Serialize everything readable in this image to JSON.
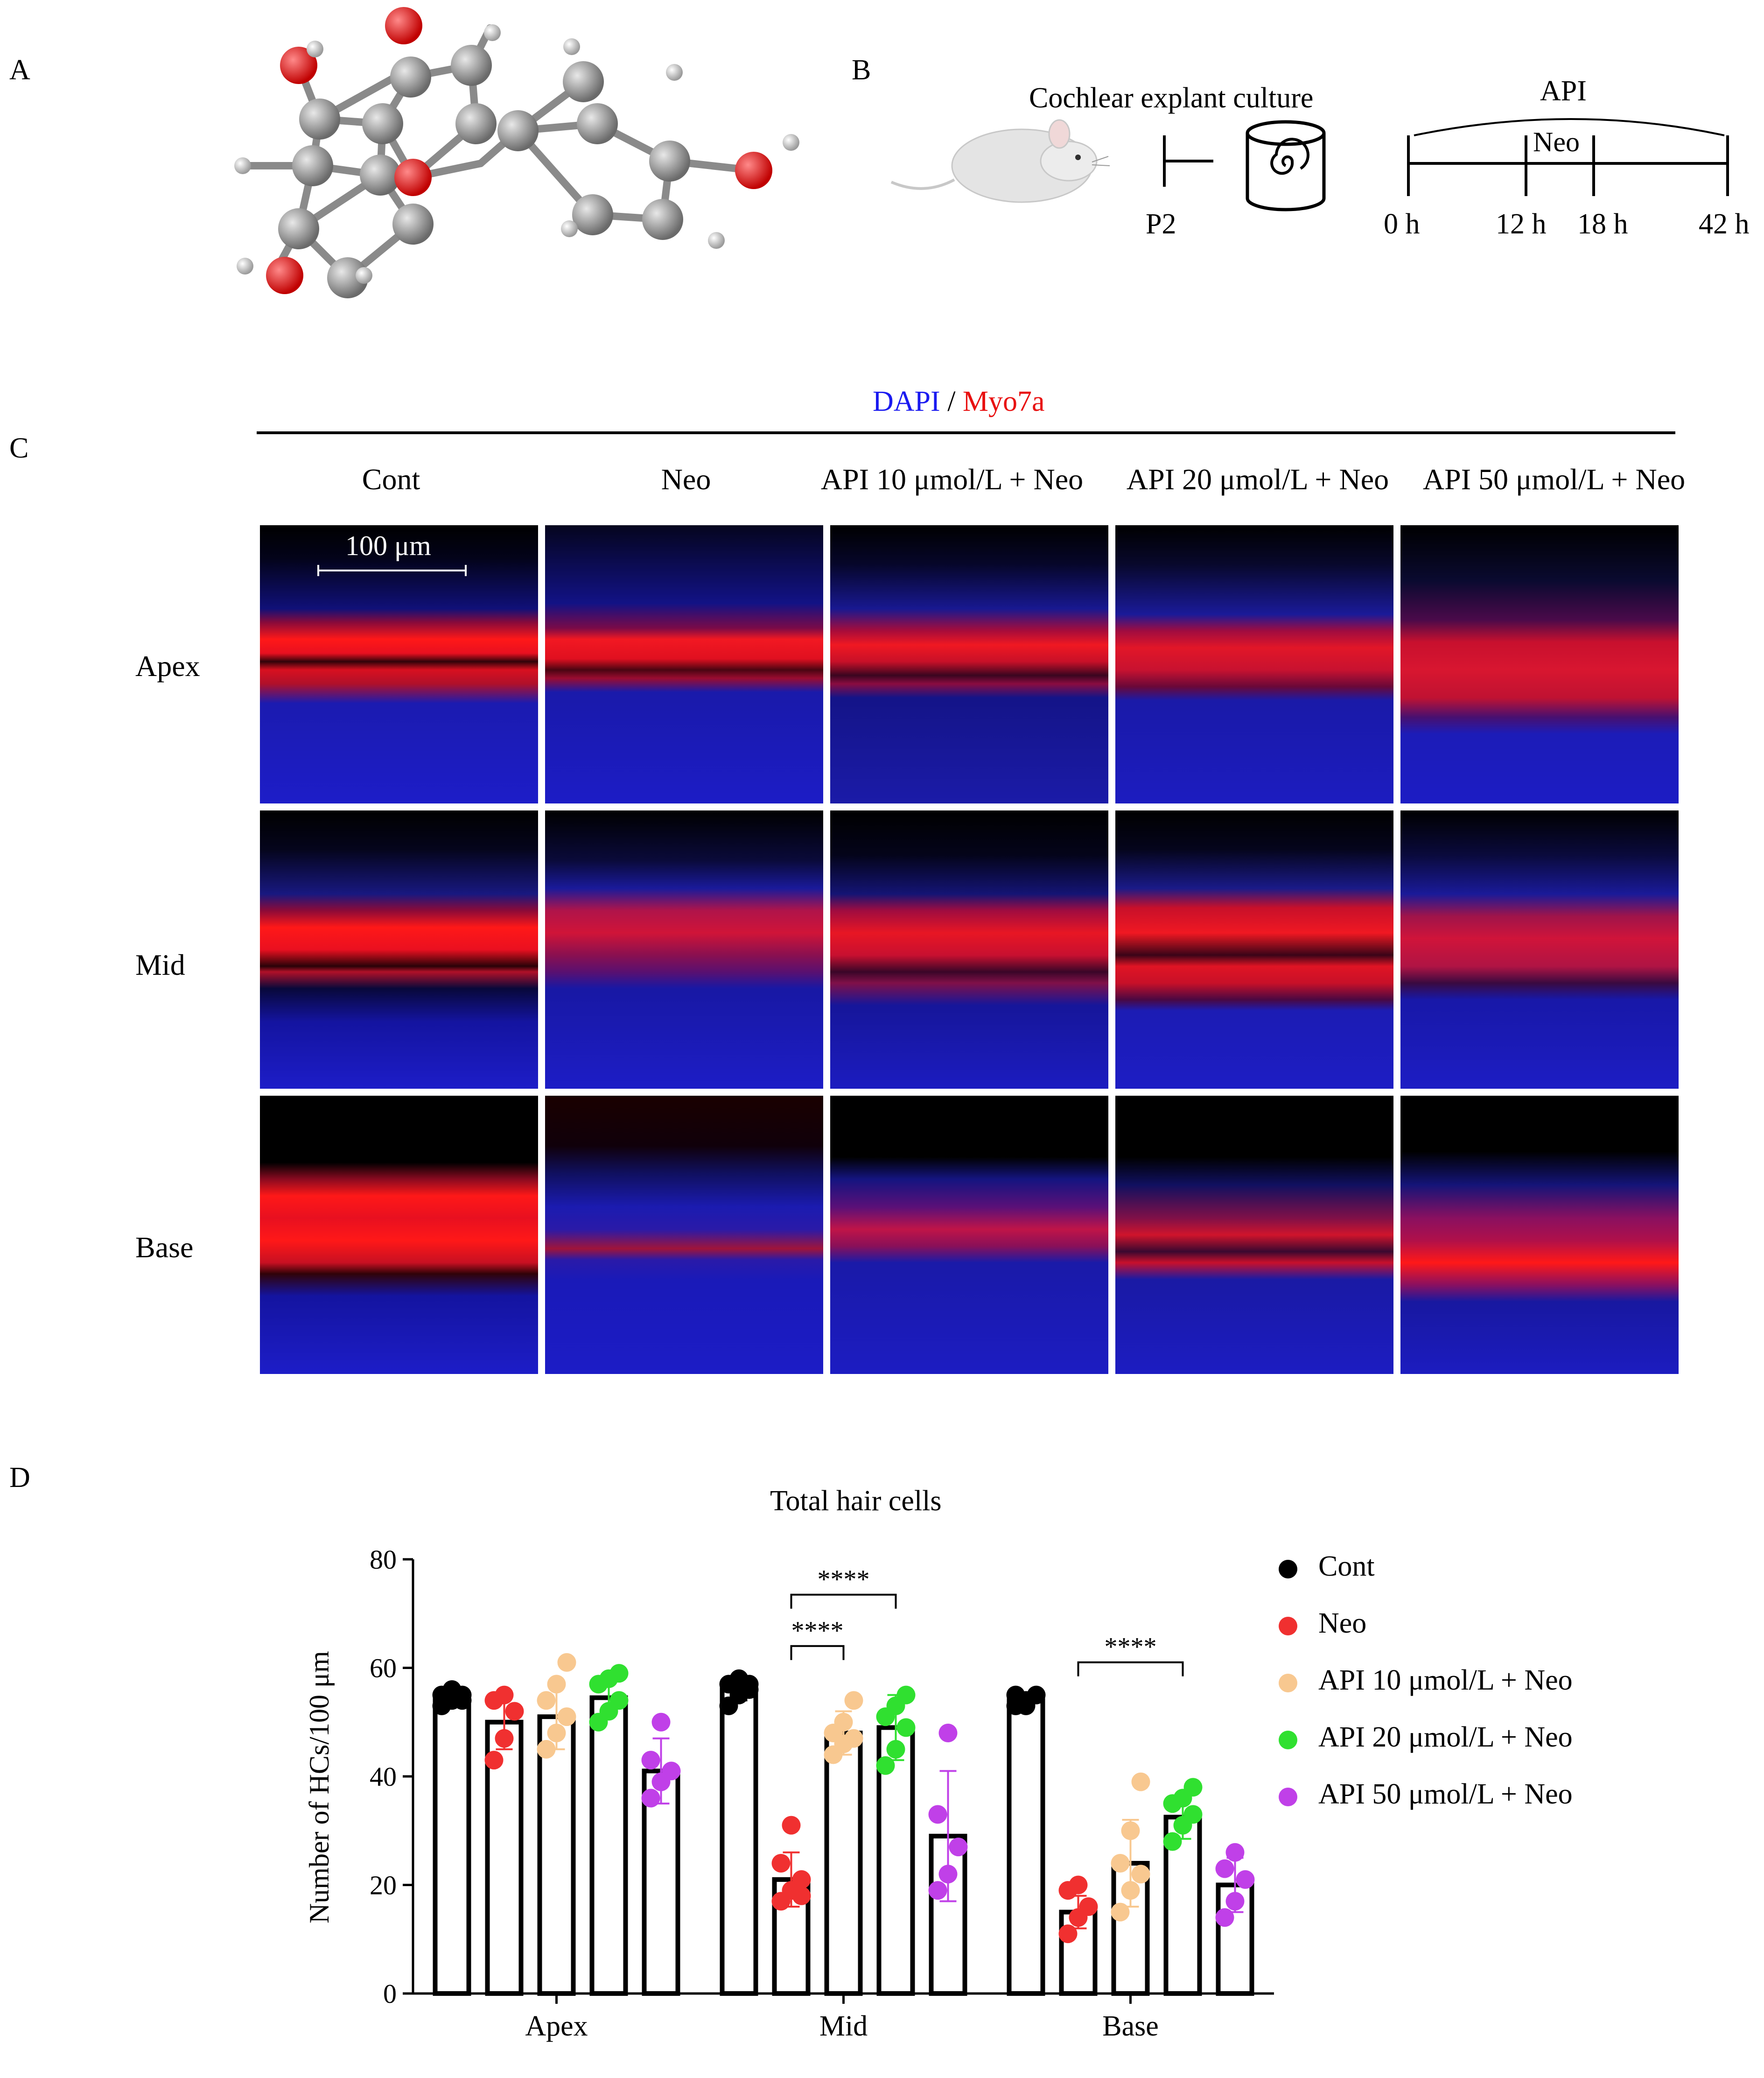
{
  "panel_labels": {
    "a": "A",
    "b": "B",
    "c": "C",
    "d": "D"
  },
  "panel_b": {
    "culture_label": "Cochlear explant culture",
    "age_label": "P2",
    "api_label": "API",
    "neo_label": "Neo",
    "timepoints": [
      "0 h",
      "12 h",
      "18 h",
      "42 h"
    ]
  },
  "panel_c": {
    "stain_dapi": "DAPI",
    "stain_sep": " / ",
    "stain_myo": "Myo7a",
    "columns": [
      "Cont",
      "Neo",
      "API 10 μmol/L + Neo",
      "API 20 μmol/L + Neo",
      "API 50 μmol/L + Neo"
    ],
    "rows": [
      "Apex",
      "Mid",
      "Base"
    ],
    "scale_bar": "100 μm"
  },
  "colors": {
    "Cont": "#000000",
    "Neo": "#f03030",
    "API 10 μmol/L + Neo": "#f8c890",
    "API 20 μmol/L + Neo": "#30e030",
    "API 50 μmol/L + Neo": "#c040e8",
    "dapi": "#2a2ad8",
    "myo": "#ff1010"
  },
  "chart_data": {
    "type": "bar",
    "title": "Total hair cells",
    "ylabel": "Number of HCs/100 μm",
    "xlabel": "",
    "categories": [
      "Apex",
      "Mid",
      "Base"
    ],
    "ylim": [
      0,
      80
    ],
    "yticks": [
      0,
      20,
      40,
      60,
      80
    ],
    "legend": "right",
    "series": [
      {
        "name": "Cont",
        "values": [
          54.5,
          56,
          54
        ],
        "errors": [
          1,
          2,
          1
        ],
        "points": [
          [
            53,
            54,
            55,
            55,
            56,
            54
          ],
          [
            53,
            55,
            56,
            57,
            58,
            57
          ],
          [
            53,
            54,
            55,
            55,
            53
          ]
        ]
      },
      {
        "name": "Neo",
        "values": [
          50,
          21,
          15
        ],
        "errors": [
          5,
          5,
          3
        ],
        "points": [
          [
            43,
            47,
            52,
            54,
            55
          ],
          [
            17,
            19,
            21,
            24,
            31,
            18
          ],
          [
            11,
            14,
            16,
            19,
            20
          ]
        ]
      },
      {
        "name": "API 10 μmol/L + Neo",
        "values": [
          51,
          48,
          24
        ],
        "errors": [
          6,
          4,
          8
        ],
        "points": [
          [
            45,
            48,
            51,
            54,
            57,
            61
          ],
          [
            44,
            46,
            47,
            48,
            50,
            54
          ],
          [
            15,
            19,
            22,
            24,
            30,
            39
          ]
        ]
      },
      {
        "name": "API 20 μmol/L + Neo",
        "values": [
          54.5,
          49,
          32.5
        ],
        "errors": [
          3,
          6,
          4
        ],
        "points": [
          [
            50,
            52,
            54,
            57,
            58,
            59
          ],
          [
            42,
            45,
            49,
            51,
            53,
            55
          ],
          [
            28,
            31,
            33,
            35,
            36,
            38
          ]
        ]
      },
      {
        "name": "API 50 μmol/L + Neo",
        "values": [
          41,
          29,
          20
        ],
        "errors": [
          6,
          12,
          5
        ],
        "points": [
          [
            36,
            39,
            41,
            43,
            50
          ],
          [
            19,
            22,
            27,
            33,
            48
          ],
          [
            14,
            17,
            21,
            23,
            26
          ]
        ]
      }
    ],
    "annotations": [
      {
        "category": "Mid",
        "from": "Neo",
        "to": "API 10 μmol/L + Neo",
        "label": "****"
      },
      {
        "category": "Mid",
        "from": "Neo",
        "to": "API 20 μmol/L + Neo",
        "label": "****"
      },
      {
        "category": "Base",
        "from": "Neo",
        "to": "API 20 μmol/L + Neo",
        "label": "****"
      }
    ]
  }
}
